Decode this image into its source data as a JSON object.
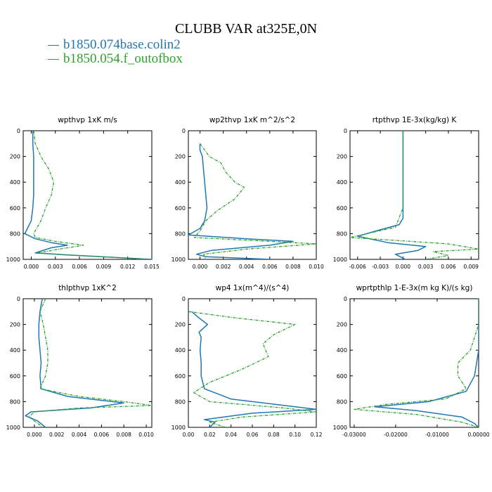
{
  "title": "CLUBB VAR at325E,0N",
  "legend": [
    {
      "label": "b1850.074base.colin2",
      "color": "#1f77b4"
    },
    {
      "label": "b1850.054.f_outofbox",
      "color": "#2ca02c"
    }
  ],
  "chart_data": [
    {
      "type": "line",
      "title": "wpthvp  1xK m/s",
      "xlim": [
        -0.001,
        0.015
      ],
      "xticks": [
        0.0,
        0.003,
        0.006,
        0.009,
        0.012,
        0.015
      ],
      "xticklabels": [
        "0.000",
        "0.003",
        "0.006",
        "0.009",
        "0.012",
        "0.015"
      ],
      "ylim": [
        1000,
        0
      ],
      "yticks": [
        0,
        200,
        400,
        600,
        800,
        1000
      ],
      "series": [
        {
          "name": "b1850.074base.colin2",
          "color": "#1f77b4",
          "x": [
            0.0002,
            0.0002,
            0.0003,
            0.0003,
            0.0003,
            0.0003,
            0.0002,
            0.0,
            -0.0008,
            0.0005,
            0.0025,
            0.0045,
            0.0025,
            0.0005,
            0.0045,
            0.012,
            0.015
          ],
          "y": [
            0,
            100,
            200,
            300,
            400,
            500,
            600,
            700,
            800,
            840,
            870,
            890,
            910,
            950,
            965,
            990,
            1000
          ]
        },
        {
          "name": "b1850.054.f_outofbox",
          "color": "#2ca02c",
          "x": [
            0.0003,
            0.0005,
            0.0012,
            0.0022,
            0.0028,
            0.0025,
            0.0018,
            0.0012,
            0.0003,
            0.0005,
            0.003,
            0.0065,
            0.0035,
            0.0008,
            0.004,
            0.012,
            0.0145
          ],
          "y": [
            0,
            100,
            200,
            300,
            400,
            500,
            600,
            700,
            800,
            830,
            860,
            890,
            920,
            950,
            965,
            990,
            1000
          ]
        }
      ]
    },
    {
      "type": "line",
      "title": "wp2thvp  1xK m^2/s^2",
      "xlim": [
        -0.001,
        0.01
      ],
      "xticks": [
        0.0,
        0.002,
        0.004,
        0.006,
        0.008,
        0.01
      ],
      "xticklabels": [
        "0.000",
        "0.002",
        "0.004",
        "0.006",
        "0.008",
        "0.010"
      ],
      "ylim": [
        1000,
        0
      ],
      "yticks": [
        0,
        200,
        400,
        600,
        800,
        1000
      ],
      "series": [
        {
          "name": "b1850.074base.colin2",
          "color": "#1f77b4",
          "x": [
            0.0,
            0.0,
            0.0002,
            0.0003,
            0.0004,
            0.0005,
            0.0006,
            0.0004,
            0.0,
            -0.001,
            0.004,
            0.008,
            0.006,
            0.001,
            -0.0003,
            0.0005,
            0.006
          ],
          "y": [
            100,
            150,
            200,
            300,
            400,
            500,
            600,
            700,
            760,
            810,
            840,
            860,
            890,
            930,
            960,
            980,
            1000
          ]
        },
        {
          "name": "b1850.054.f_outofbox",
          "color": "#2ca02c",
          "x": [
            0.0,
            0.0008,
            0.0018,
            0.0022,
            0.003,
            0.0038,
            0.003,
            0.0015,
            0.0005,
            0.0,
            -0.0005,
            0.006,
            0.01,
            0.004,
            0.0003,
            0.0005
          ],
          "y": [
            100,
            200,
            250,
            320,
            400,
            440,
            530,
            620,
            700,
            780,
            830,
            860,
            880,
            920,
            960,
            1000
          ]
        }
      ]
    },
    {
      "type": "line",
      "title": "rtpthvp  1E-3x(kg/kg) K",
      "xlim": [
        -0.007,
        0.01
      ],
      "xticks": [
        -0.006,
        -0.003,
        0.0,
        0.003,
        0.006,
        0.009
      ],
      "xticklabels": [
        "-0.006",
        "-0.003",
        "0.000",
        "0.003",
        "0.006",
        "0.009"
      ],
      "ylim": [
        1000,
        0
      ],
      "yticks": [
        0,
        200,
        400,
        600,
        800,
        1000
      ],
      "series": [
        {
          "name": "b1850.074base.colin2",
          "color": "#1f77b4",
          "x": [
            0.0,
            0.0,
            0.0,
            0.0,
            0.0,
            0.0,
            -0.0005,
            -0.003,
            -0.006,
            -0.002,
            0.003,
            0.002,
            -0.001,
            0.0003
          ],
          "y": [
            0,
            200,
            400,
            500,
            600,
            680,
            730,
            770,
            820,
            870,
            900,
            930,
            960,
            1000
          ]
        },
        {
          "name": "b1850.054.f_outofbox",
          "color": "#2ca02c",
          "x": [
            0.0,
            0.0,
            0.0,
            0.0,
            0.0,
            -0.001,
            -0.007,
            0.001,
            0.006,
            0.01,
            0.004,
            0.006,
            0.003
          ],
          "y": [
            0,
            200,
            400,
            500,
            600,
            750,
            830,
            860,
            880,
            920,
            940,
            970,
            1000
          ]
        }
      ]
    },
    {
      "type": "line",
      "title": "thlpthvp  1xK^2",
      "xlim": [
        -0.001,
        0.0105
      ],
      "xticks": [
        0.0,
        0.002,
        0.004,
        0.006,
        0.008,
        0.01
      ],
      "xticklabels": [
        "0.000",
        "0.002",
        "0.004",
        "0.006",
        "0.008",
        "0.010"
      ],
      "ylim": [
        1000,
        0
      ],
      "yticks": [
        0,
        200,
        400,
        600,
        800,
        1000
      ],
      "series": [
        {
          "name": "b1850.074base.colin2",
          "color": "#1f77b4",
          "x": [
            0.0007,
            0.0005,
            0.0004,
            0.0004,
            0.0005,
            0.0006,
            0.0005,
            0.0006,
            0.003,
            0.006,
            0.008,
            0.005,
            -0.0003,
            -0.0008,
            0.0003,
            0.001
          ],
          "y": [
            0,
            100,
            200,
            300,
            400,
            500,
            600,
            700,
            760,
            790,
            810,
            850,
            880,
            910,
            950,
            1000
          ]
        },
        {
          "name": "b1850.054.f_outofbox",
          "color": "#2ca02c",
          "x": [
            0.001,
            0.0005,
            0.0008,
            0.001,
            0.0012,
            0.0012,
            0.001,
            0.0005,
            0.004,
            0.008,
            0.0105,
            0.004,
            0.0,
            -0.0005,
            0.0008
          ],
          "y": [
            0,
            100,
            200,
            300,
            400,
            500,
            600,
            700,
            760,
            800,
            830,
            850,
            880,
            920,
            1000
          ]
        }
      ]
    },
    {
      "type": "line",
      "title": "wp4  1x(m^4)/(s^4)",
      "xlim": [
        0.0,
        0.12
      ],
      "xticks": [
        0.0,
        0.02,
        0.04,
        0.06,
        0.08,
        0.1,
        0.12
      ],
      "xticklabels": [
        "0.00",
        "0.02",
        "0.04",
        "0.06",
        "0.08",
        "0.10",
        "0.12"
      ],
      "ylim": [
        1000,
        0
      ],
      "yticks": [
        0,
        200,
        400,
        600,
        800,
        1000
      ],
      "series": [
        {
          "name": "b1850.074base.colin2",
          "color": "#1f77b4",
          "x": [
            0.003,
            0.01,
            0.018,
            0.01,
            0.012,
            0.011,
            0.012,
            0.012,
            0.015,
            0.04,
            0.09,
            0.12,
            0.06,
            0.015,
            0.025,
            0.02
          ],
          "y": [
            100,
            150,
            200,
            260,
            300,
            400,
            500,
            600,
            700,
            780,
            830,
            860,
            890,
            940,
            960,
            1000
          ]
        },
        {
          "name": "b1850.054.f_outofbox",
          "color": "#2ca02c",
          "x": [
            0.0,
            0.045,
            0.1,
            0.08,
            0.07,
            0.075,
            0.05,
            0.02,
            0.005,
            0.02,
            0.09,
            0.12,
            0.05,
            0.02,
            0.035
          ],
          "y": [
            100,
            150,
            200,
            280,
            350,
            450,
            550,
            650,
            730,
            800,
            850,
            880,
            920,
            960,
            1000
          ]
        }
      ]
    },
    {
      "type": "line",
      "title": "wprtpthlp  1-E-3x(m kg K)/(s kg)",
      "xlim": [
        -0.031,
        0.0
      ],
      "xticks": [
        -0.03,
        -0.02,
        -0.01,
        0.0
      ],
      "xticklabels": [
        "-0.03000",
        "-0.02000",
        "-0.01000",
        "0.00000"
      ],
      "ylim": [
        1000,
        0
      ],
      "yticks": [
        0,
        200,
        400,
        600,
        800,
        1000
      ],
      "series": [
        {
          "name": "b1850.074base.colin2",
          "color": "#1f77b4",
          "x": [
            0.0,
            0.0,
            0.0,
            -0.001,
            -0.003,
            -0.012,
            -0.025,
            -0.015,
            -0.004,
            -0.001,
            0.0
          ],
          "y": [
            0,
            200,
            400,
            600,
            720,
            800,
            840,
            870,
            920,
            970,
            1000
          ]
        },
        {
          "name": "b1850.054.f_outofbox",
          "color": "#2ca02c",
          "x": [
            0.0,
            0.0,
            -0.002,
            -0.005,
            -0.005,
            -0.003,
            -0.008,
            -0.022,
            -0.03,
            -0.015,
            -0.004,
            0.0
          ],
          "y": [
            0,
            200,
            400,
            500,
            600,
            700,
            780,
            820,
            860,
            900,
            960,
            1000
          ]
        }
      ]
    }
  ]
}
